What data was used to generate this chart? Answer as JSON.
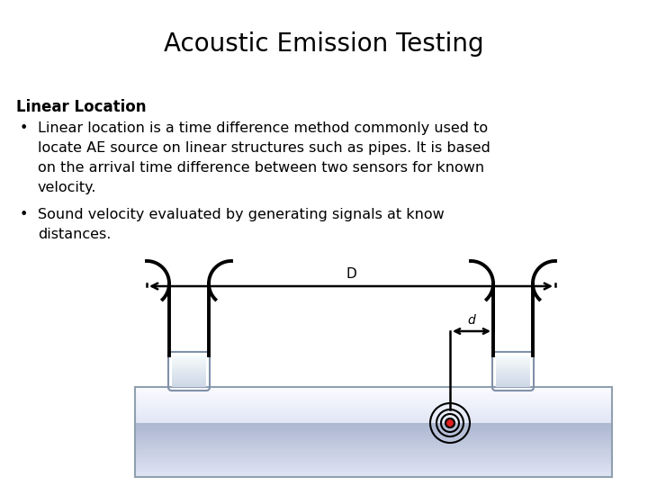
{
  "title": "Acoustic Emission Testing",
  "title_fontsize": 20,
  "bg_color": "#ffffff",
  "heading": "Linear Location",
  "bullet1_lines": [
    "Linear location is a time difference method commonly used to",
    "locate AE source on linear structures such as pipes. It is based",
    "on the arrival time difference between two sensors for known",
    "velocity."
  ],
  "bullet2_lines": [
    "Sound velocity evaluated by generating signals at know",
    "distances."
  ],
  "text_fontsize": 11.5,
  "heading_fontsize": 12,
  "pipe_color_top": "#e8ecf4",
  "pipe_color_bot": "#b0b8cc",
  "sensor_color": "#c8d0e0",
  "coil_lw": 2.8,
  "arrow_lw": 1.8
}
